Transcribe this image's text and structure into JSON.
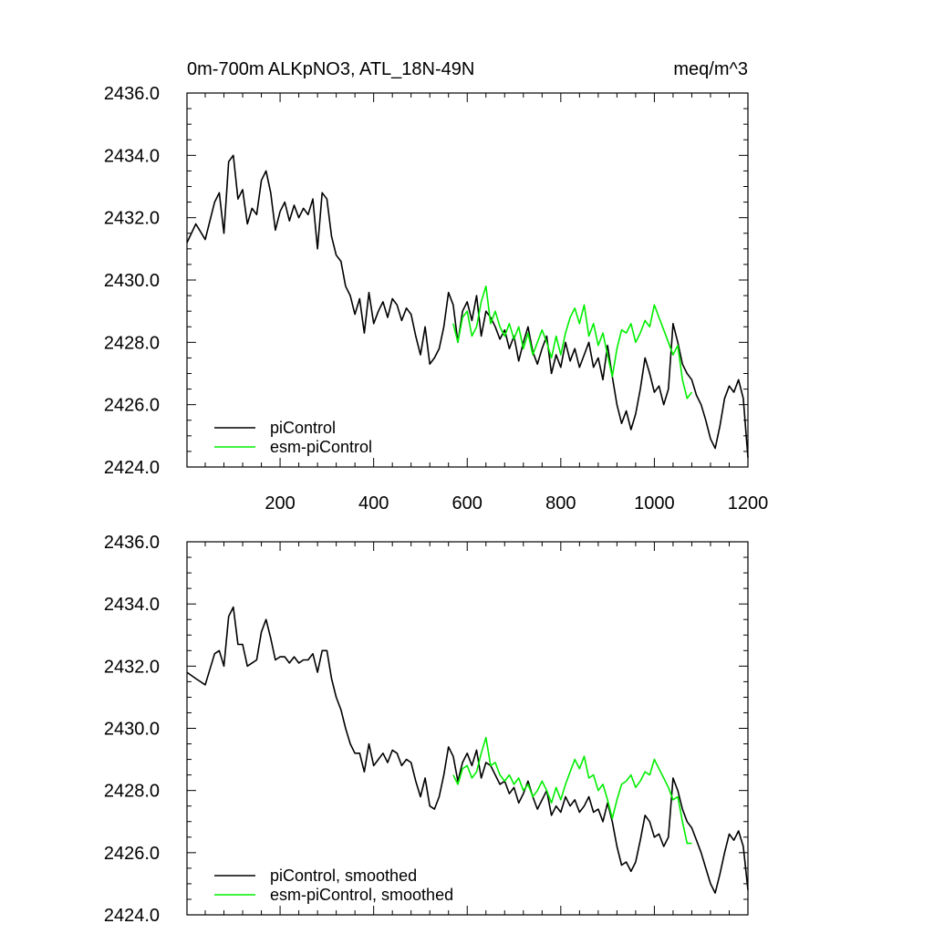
{
  "header": {
    "title": "0m-700m ALKpNO3, ATL_18N-49N",
    "units": "meq/m^3"
  },
  "chart_data": [
    {
      "type": "line",
      "panel": "top",
      "xlim": [
        1,
        1200
      ],
      "ylim": [
        2424.0,
        2436.0
      ],
      "xticks": [
        200,
        400,
        600,
        800,
        1000,
        1200
      ],
      "xtick_labels": [
        "200",
        "400",
        "600",
        "800",
        "1000",
        "1200"
      ],
      "yticks": [
        2424,
        2426,
        2428,
        2430,
        2432,
        2434,
        2436
      ],
      "ytick_labels": [
        "2424.0",
        "2426.0",
        "2428.0",
        "2430.0",
        "2432.0",
        "2434.0",
        "2436.0"
      ],
      "legend_position": "bottom-left",
      "series": [
        {
          "name": "piControl",
          "color": "#000000",
          "x": [
            1,
            20,
            40,
            60,
            70,
            80,
            90,
            100,
            110,
            120,
            130,
            140,
            150,
            160,
            170,
            180,
            190,
            200,
            210,
            220,
            230,
            240,
            250,
            260,
            270,
            280,
            290,
            300,
            310,
            320,
            330,
            340,
            350,
            360,
            370,
            380,
            390,
            400,
            410,
            420,
            430,
            440,
            450,
            460,
            470,
            480,
            490,
            500,
            510,
            520,
            530,
            540,
            550,
            560,
            570,
            580,
            590,
            600,
            610,
            620,
            630,
            640,
            650,
            660,
            670,
            680,
            690,
            700,
            710,
            720,
            730,
            740,
            750,
            760,
            770,
            780,
            790,
            800,
            810,
            820,
            830,
            840,
            850,
            860,
            870,
            880,
            890,
            900,
            910,
            920,
            930,
            940,
            950,
            960,
            970,
            980,
            990,
            1000,
            1010,
            1020,
            1030,
            1040,
            1050,
            1060,
            1070,
            1080,
            1090,
            1100,
            1110,
            1120,
            1130,
            1140,
            1150,
            1160,
            1170,
            1180,
            1190,
            1200
          ],
          "y": [
            2431.2,
            2431.8,
            2431.3,
            2432.5,
            2432.8,
            2431.5,
            2433.8,
            2434.0,
            2432.6,
            2432.9,
            2431.8,
            2432.3,
            2432.1,
            2433.2,
            2433.5,
            2432.8,
            2431.6,
            2432.2,
            2432.5,
            2431.9,
            2432.4,
            2432.0,
            2432.3,
            2432.1,
            2432.6,
            2431.0,
            2432.8,
            2432.6,
            2431.4,
            2430.8,
            2430.6,
            2429.8,
            2429.5,
            2428.9,
            2429.4,
            2428.3,
            2429.6,
            2428.6,
            2429.0,
            2429.3,
            2428.8,
            2429.4,
            2429.2,
            2428.7,
            2429.1,
            2428.9,
            2428.2,
            2427.6,
            2428.5,
            2427.3,
            2427.5,
            2427.8,
            2428.5,
            2429.6,
            2429.2,
            2428.0,
            2429.0,
            2429.3,
            2428.7,
            2429.5,
            2428.2,
            2429.0,
            2428.8,
            2428.5,
            2428.1,
            2428.4,
            2427.8,
            2428.2,
            2427.4,
            2428.0,
            2428.5,
            2427.7,
            2427.3,
            2427.8,
            2428.2,
            2427.0,
            2427.6,
            2427.2,
            2428.0,
            2427.4,
            2427.8,
            2427.2,
            2427.6,
            2428.0,
            2427.2,
            2427.5,
            2426.8,
            2427.9,
            2426.9,
            2426.0,
            2425.4,
            2425.8,
            2425.2,
            2425.7,
            2426.5,
            2427.5,
            2427.0,
            2426.4,
            2426.6,
            2426.0,
            2426.5,
            2428.6,
            2428.0,
            2427.3,
            2427.0,
            2426.8,
            2426.3,
            2426.0,
            2425.5,
            2424.9,
            2424.6,
            2425.3,
            2426.2,
            2426.6,
            2426.4,
            2426.8,
            2426.2,
            2424.3
          ]
        },
        {
          "name": "esm-piControl",
          "color": "#00ee00",
          "x": [
            570,
            580,
            590,
            600,
            610,
            620,
            630,
            640,
            650,
            660,
            670,
            680,
            690,
            700,
            710,
            720,
            730,
            740,
            750,
            760,
            770,
            780,
            790,
            800,
            810,
            820,
            830,
            840,
            850,
            860,
            870,
            880,
            890,
            900,
            910,
            920,
            930,
            940,
            950,
            960,
            970,
            980,
            990,
            1000,
            1010,
            1020,
            1030,
            1040,
            1050,
            1060,
            1070,
            1080
          ],
          "y": [
            2428.6,
            2428.0,
            2428.8,
            2429.0,
            2428.2,
            2428.5,
            2429.3,
            2429.8,
            2428.6,
            2429.0,
            2428.5,
            2428.2,
            2428.6,
            2428.1,
            2428.5,
            2427.8,
            2428.3,
            2427.6,
            2428.0,
            2428.4,
            2428.0,
            2427.5,
            2428.2,
            2427.6,
            2428.3,
            2428.8,
            2429.1,
            2428.6,
            2429.2,
            2428.2,
            2428.6,
            2427.9,
            2428.3,
            2427.6,
            2426.9,
            2427.8,
            2428.4,
            2428.3,
            2428.6,
            2428.0,
            2428.3,
            2428.7,
            2428.5,
            2429.2,
            2428.8,
            2428.4,
            2428.0,
            2427.6,
            2427.9,
            2426.8,
            2426.2,
            2426.4
          ]
        }
      ]
    },
    {
      "type": "line",
      "panel": "bottom",
      "xlim": [
        1,
        1200
      ],
      "ylim": [
        2424.0,
        2436.0
      ],
      "yticks": [
        2424,
        2426,
        2428,
        2430,
        2432,
        2434,
        2436
      ],
      "ytick_labels": [
        "2424.0",
        "2426.0",
        "2428.0",
        "2430.0",
        "2432.0",
        "2434.0",
        "2436.0"
      ],
      "legend_position": "bottom-left",
      "series": [
        {
          "name": "piControl, smoothed",
          "color": "#000000",
          "x": [
            1,
            20,
            40,
            60,
            70,
            80,
            90,
            100,
            110,
            120,
            130,
            140,
            150,
            160,
            170,
            180,
            190,
            200,
            210,
            220,
            230,
            240,
            250,
            260,
            270,
            280,
            290,
            300,
            310,
            320,
            330,
            340,
            350,
            360,
            370,
            380,
            390,
            400,
            410,
            420,
            430,
            440,
            450,
            460,
            470,
            480,
            490,
            500,
            510,
            520,
            530,
            540,
            550,
            560,
            570,
            580,
            590,
            600,
            610,
            620,
            630,
            640,
            650,
            660,
            670,
            680,
            690,
            700,
            710,
            720,
            730,
            740,
            750,
            760,
            770,
            780,
            790,
            800,
            810,
            820,
            830,
            840,
            850,
            860,
            870,
            880,
            890,
            900,
            910,
            920,
            930,
            940,
            950,
            960,
            970,
            980,
            990,
            1000,
            1010,
            1020,
            1030,
            1040,
            1050,
            1060,
            1070,
            1080,
            1090,
            1100,
            1110,
            1120,
            1130,
            1140,
            1150,
            1160,
            1170,
            1180,
            1190,
            1200
          ],
          "y": [
            2431.8,
            2431.6,
            2431.4,
            2432.4,
            2432.5,
            2432.0,
            2433.6,
            2433.9,
            2432.7,
            2432.7,
            2432.0,
            2432.1,
            2432.2,
            2433.1,
            2433.5,
            2432.9,
            2432.2,
            2432.3,
            2432.3,
            2432.1,
            2432.3,
            2432.1,
            2432.2,
            2432.2,
            2432.4,
            2431.8,
            2432.5,
            2432.5,
            2431.6,
            2431.0,
            2430.6,
            2430.0,
            2429.5,
            2429.2,
            2429.2,
            2428.6,
            2429.5,
            2428.8,
            2429.0,
            2429.2,
            2428.9,
            2429.3,
            2429.2,
            2428.8,
            2429.0,
            2428.9,
            2428.3,
            2427.8,
            2428.4,
            2427.5,
            2427.4,
            2427.8,
            2428.5,
            2429.4,
            2429.1,
            2428.3,
            2428.9,
            2429.2,
            2428.8,
            2429.3,
            2428.4,
            2428.9,
            2428.8,
            2428.5,
            2428.2,
            2428.3,
            2427.9,
            2428.1,
            2427.6,
            2427.9,
            2428.3,
            2427.8,
            2427.4,
            2427.7,
            2428.0,
            2427.2,
            2427.5,
            2427.3,
            2427.8,
            2427.5,
            2427.7,
            2427.3,
            2427.5,
            2427.8,
            2427.3,
            2427.4,
            2427.0,
            2427.6,
            2427.0,
            2426.2,
            2425.6,
            2425.7,
            2425.4,
            2425.7,
            2426.4,
            2427.2,
            2427.0,
            2426.5,
            2426.6,
            2426.2,
            2426.5,
            2428.4,
            2428.0,
            2427.4,
            2427.0,
            2426.8,
            2426.4,
            2426.0,
            2425.5,
            2425.0,
            2424.7,
            2425.3,
            2426.0,
            2426.6,
            2426.4,
            2426.7,
            2426.2,
            2424.8
          ]
        },
        {
          "name": "esm-piControl, smoothed",
          "color": "#00ee00",
          "x": [
            570,
            580,
            590,
            600,
            610,
            620,
            630,
            640,
            650,
            660,
            670,
            680,
            690,
            700,
            710,
            720,
            730,
            740,
            750,
            760,
            770,
            780,
            790,
            800,
            810,
            820,
            830,
            840,
            850,
            860,
            870,
            880,
            890,
            900,
            910,
            920,
            930,
            940,
            950,
            960,
            970,
            980,
            990,
            1000,
            1010,
            1020,
            1030,
            1040,
            1050,
            1060,
            1070,
            1080
          ],
          "y": [
            2428.5,
            2428.2,
            2428.7,
            2428.8,
            2428.4,
            2428.6,
            2429.2,
            2429.7,
            2428.8,
            2428.9,
            2428.5,
            2428.3,
            2428.5,
            2428.2,
            2428.4,
            2428.0,
            2428.2,
            2427.8,
            2428.0,
            2428.3,
            2428.0,
            2427.6,
            2428.1,
            2427.7,
            2428.2,
            2428.6,
            2429.0,
            2428.7,
            2429.1,
            2428.4,
            2428.5,
            2428.0,
            2428.2,
            2427.7,
            2427.1,
            2427.7,
            2428.2,
            2428.3,
            2428.5,
            2428.1,
            2428.3,
            2428.6,
            2428.5,
            2429.0,
            2428.7,
            2428.4,
            2428.1,
            2427.7,
            2427.8,
            2427.0,
            2426.3,
            2426.3
          ]
        }
      ]
    }
  ]
}
